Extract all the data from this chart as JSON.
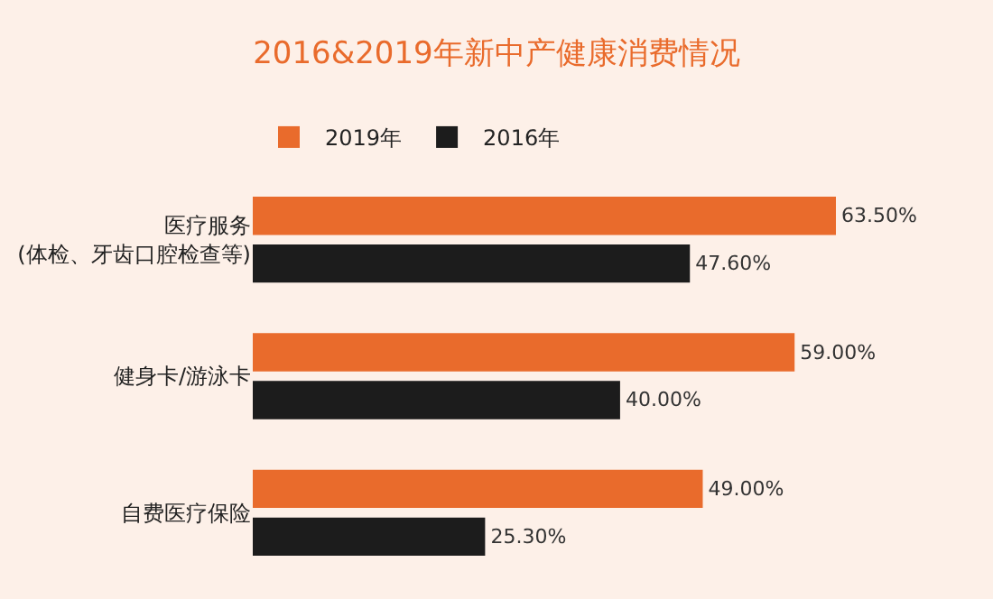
{
  "chart_data": {
    "type": "bar",
    "orientation": "horizontal",
    "title": "2016&2019年新中产健康消费情况",
    "categories": [
      "医疗服务\n(体检、牙齿口腔检查等)",
      "健身卡/游泳卡",
      "自费医疗保险"
    ],
    "series": [
      {
        "name": "2019年",
        "color": "#e96b2c",
        "values": [
          63.5,
          59.0,
          49.0
        ],
        "value_labels": [
          "63.50%",
          "59.00%",
          "49.00%"
        ]
      },
      {
        "name": "2016年",
        "color": "#1c1c1c",
        "values": [
          47.6,
          40.0,
          25.3
        ],
        "value_labels": [
          "47.60%",
          "40.00%",
          "25.30%"
        ]
      }
    ],
    "tick_labels": "y",
    "legend": "top left"
  }
}
